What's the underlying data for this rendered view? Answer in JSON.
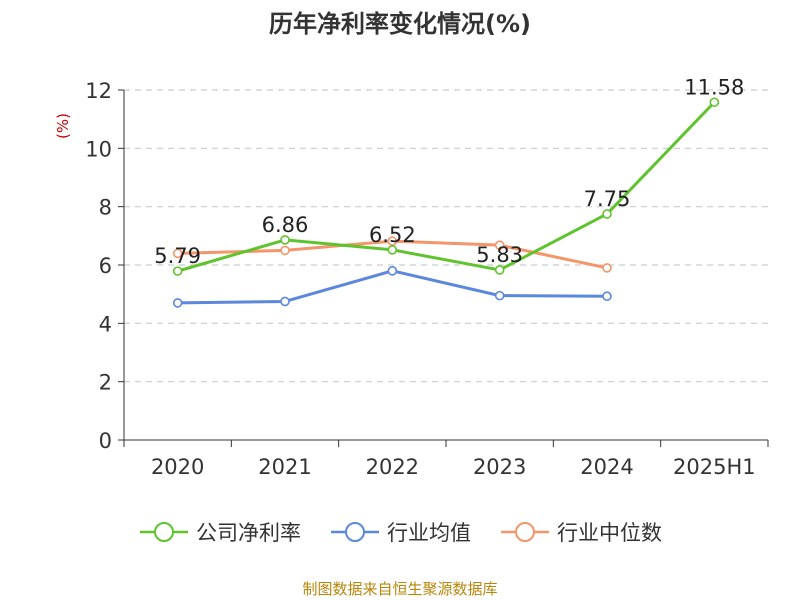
{
  "chart_data": {
    "type": "line",
    "title": "历年净利率变化情况(%)",
    "ylabel": "(%)",
    "xlabel": "",
    "categories": [
      "2020",
      "2021",
      "2022",
      "2023",
      "2024",
      "2025H1"
    ],
    "ylim": [
      0,
      12
    ],
    "yticks": [
      0,
      2,
      4,
      6,
      8,
      10,
      12
    ],
    "grid": true,
    "legend_position": "bottom",
    "series": [
      {
        "name": "公司净利率",
        "color": "#5fc32e",
        "values": [
          5.79,
          6.86,
          6.52,
          5.83,
          7.75,
          11.58
        ],
        "labels": [
          "5.79",
          "6.86",
          "6.52",
          "5.83",
          "7.75",
          "11.58"
        ]
      },
      {
        "name": "行业均值",
        "color": "#5b87dc",
        "values": [
          4.7,
          4.75,
          5.8,
          4.95,
          4.93,
          null
        ]
      },
      {
        "name": "行业中位数",
        "color": "#f5956a",
        "values": [
          6.4,
          6.5,
          6.82,
          6.68,
          5.9,
          null
        ]
      }
    ]
  },
  "source_text": "制图数据来自恒生聚源数据库"
}
